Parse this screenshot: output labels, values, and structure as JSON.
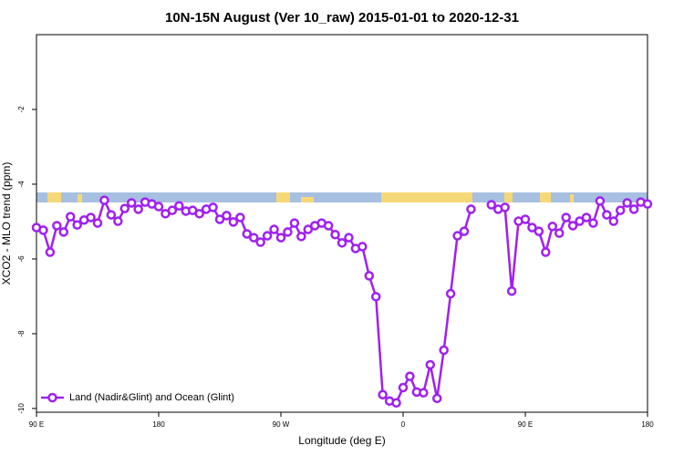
{
  "chart_data": {
    "type": "line",
    "title": "10N-15N August (Ver 10_raw)   2015-01-01 to 2020-12-31",
    "x_label": "Longitude (deg E)",
    "y_label": "XCO2 - MLO trend (ppm)",
    "x": [
      90,
      95,
      100,
      105,
      110,
      115,
      120,
      125,
      130,
      135,
      140,
      145,
      150,
      155,
      160,
      165,
      170,
      175,
      180,
      185,
      190,
      195,
      200,
      205,
      210,
      215,
      220,
      225,
      230,
      235,
      240,
      245,
      250,
      255,
      260,
      265,
      270,
      275,
      280,
      285,
      290,
      295,
      300,
      305,
      310,
      315,
      320,
      325,
      330,
      335,
      340,
      345,
      350,
      355,
      360,
      365,
      370,
      375,
      380,
      385,
      390,
      395,
      400,
      405,
      410,
      415,
      420,
      425,
      430,
      435,
      440,
      445,
      450,
      455,
      460,
      465,
      470,
      475,
      480,
      485,
      490,
      495,
      500,
      505,
      510,
      515,
      520,
      525,
      530,
      535,
      540
    ],
    "series": [
      {
        "name": "Land (Nadir&Glint) and Ocean (Glint)",
        "color": "#a020f0",
        "values": [
          -5.16,
          -5.23,
          -5.82,
          -5.11,
          -5.28,
          -4.87,
          -5.09,
          -4.96,
          -4.89,
          -5.04,
          -4.43,
          -4.82,
          -4.99,
          -4.65,
          -4.5,
          -4.67,
          -4.48,
          -4.53,
          -4.6,
          -4.79,
          -4.7,
          -4.58,
          -4.72,
          -4.7,
          -4.79,
          -4.67,
          -4.62,
          -4.94,
          -4.84,
          -5.01,
          -4.89,
          -5.33,
          -5.43,
          -5.55,
          -5.38,
          -5.21,
          -5.43,
          -5.28,
          -5.04,
          -5.4,
          -5.21,
          -5.11,
          -5.04,
          -5.11,
          -5.35,
          -5.57,
          -5.43,
          -5.72,
          -5.67,
          -6.45,
          -7.01,
          -9.63,
          -9.8,
          -9.85,
          -9.44,
          -9.14,
          -9.56,
          -9.58,
          -8.83,
          -9.73,
          -8.44,
          -6.93,
          -5.38,
          -5.26,
          -4.67,
          null,
          null,
          -4.55,
          -4.67,
          -4.62,
          -6.86,
          -4.99,
          -4.94,
          -5.16,
          -5.26,
          -5.82,
          -5.13,
          -5.31,
          -4.89,
          -5.11,
          -4.99,
          -4.89,
          -5.04,
          -4.45,
          -4.82,
          -4.99,
          -4.7,
          -4.5,
          -4.67,
          -4.48,
          -4.53
        ]
      }
    ],
    "xlim": [
      90,
      540
    ],
    "xticks": [
      {
        "value": 90,
        "label": "90 E"
      },
      {
        "value": 180,
        "label": "180"
      },
      {
        "value": 270,
        "label": "90 W"
      },
      {
        "value": 360,
        "label": "0"
      },
      {
        "value": 450,
        "label": "90 E"
      },
      {
        "value": 540,
        "label": "180"
      }
    ],
    "ylim": [
      -10.1,
      0
    ],
    "yticks": [
      -2,
      -4,
      -6,
      -8,
      -10
    ],
    "legend": "bottom-left"
  }
}
